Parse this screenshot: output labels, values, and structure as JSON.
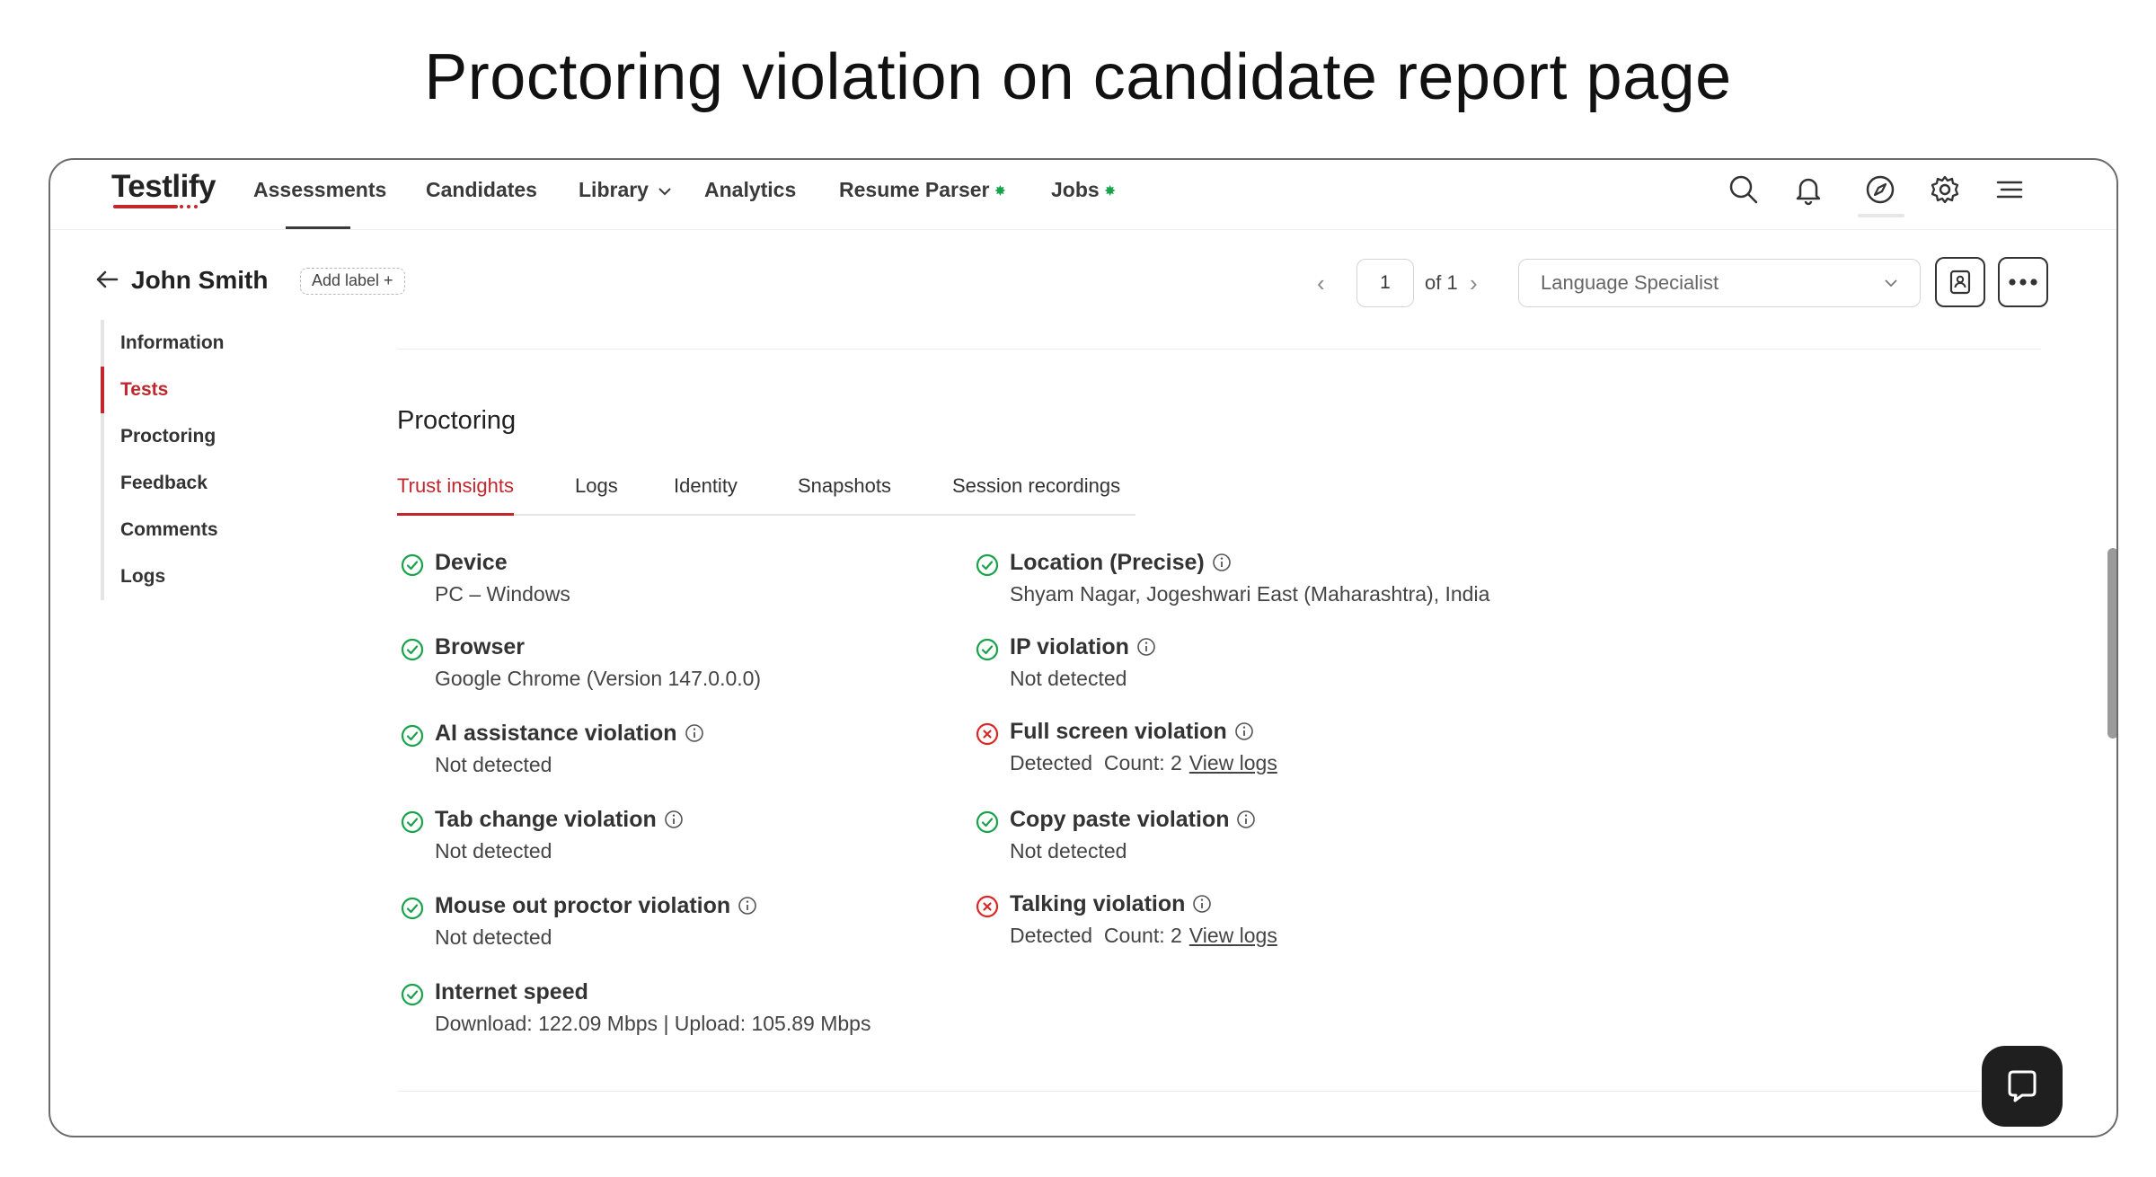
{
  "page_heading": "Proctoring violation on candidate report page",
  "nav": {
    "logo": "Testlify",
    "items": [
      {
        "label": "Assessments"
      },
      {
        "label": "Candidates"
      },
      {
        "label": "Library"
      },
      {
        "label": "Analytics"
      },
      {
        "label": "Resume Parser"
      },
      {
        "label": "Jobs"
      }
    ],
    "icons": [
      "search-icon",
      "bell-icon",
      "compass-icon",
      "gear-icon",
      "menu-icon"
    ]
  },
  "candidate": {
    "name": "John Smith",
    "add_label": "Add label +"
  },
  "pager": {
    "current": "1",
    "of_label": "of 1"
  },
  "role_select": {
    "value": "Language Specialist"
  },
  "sidenav": {
    "items": [
      {
        "label": "Information"
      },
      {
        "label": "Tests"
      },
      {
        "label": "Proctoring"
      },
      {
        "label": "Feedback"
      },
      {
        "label": "Comments"
      },
      {
        "label": "Logs"
      }
    ],
    "active": "Tests"
  },
  "proctoring": {
    "title": "Proctoring",
    "tabs": [
      {
        "label": "Trust insights"
      },
      {
        "label": "Logs"
      },
      {
        "label": "Identity"
      },
      {
        "label": "Snapshots"
      },
      {
        "label": "Session recordings"
      }
    ],
    "active_tab": "Trust insights",
    "insights_left": [
      {
        "title": "Device",
        "value": "PC – Windows",
        "status": "ok",
        "info": false
      },
      {
        "title": "Browser",
        "value": "Google Chrome (Version 147.0.0.0)",
        "status": "ok",
        "info": false
      },
      {
        "title": "AI assistance violation",
        "value": "Not detected",
        "status": "ok",
        "info": true
      },
      {
        "title": "Tab change violation",
        "value": "Not detected",
        "status": "ok",
        "info": true
      },
      {
        "title": "Mouse out proctor violation",
        "value": "Not detected",
        "status": "ok",
        "info": true
      },
      {
        "title": "Internet speed",
        "value": "Download: 122.09 Mbps | Upload: 105.89 Mbps",
        "status": "ok",
        "info": false
      }
    ],
    "insights_right": [
      {
        "title": "Location (Precise)",
        "value": "Shyam Nagar, Jogeshwari East (Maharashtra), India",
        "status": "ok",
        "info": true
      },
      {
        "title": "IP violation",
        "value": "Not detected",
        "status": "ok",
        "info": true
      },
      {
        "title": "Full screen violation",
        "value": "Detected  Count: 2",
        "link": "View logs",
        "status": "violation",
        "info": true
      },
      {
        "title": "Copy paste violation",
        "value": "Not detected",
        "status": "ok",
        "info": true
      },
      {
        "title": "Talking violation",
        "value": "Detected  Count: 2",
        "link": "View logs",
        "status": "violation",
        "info": true
      }
    ]
  },
  "colors": {
    "accent": "#c1272d",
    "ok": "#16a34a",
    "violation": "#dc2626"
  }
}
